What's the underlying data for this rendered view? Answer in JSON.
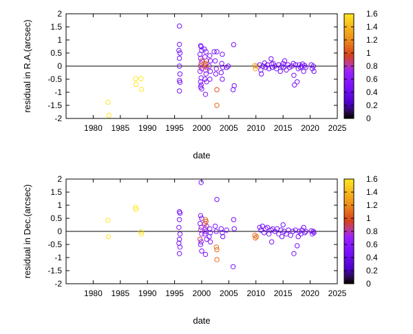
{
  "chart_data": [
    {
      "type": "scatter",
      "title": "",
      "xlabel": "date",
      "ylabel": "residual in R.A.(arcsec)",
      "xlim": [
        1975,
        2025
      ],
      "ylim": [
        -2,
        2
      ],
      "xticks": [
        1980,
        1985,
        1990,
        1995,
        2000,
        2005,
        2010,
        2015,
        2020,
        2025
      ],
      "yticks": [
        -2,
        -1.5,
        -1,
        -0.5,
        0,
        0.5,
        1,
        1.5,
        2
      ],
      "marker": "open-circle",
      "zero_line": true,
      "colorbar": {
        "min": 0,
        "max": 1.6,
        "ticks": [
          0,
          0.2,
          0.4,
          0.6,
          0.8,
          1,
          1.2,
          1.4,
          1.6
        ]
      },
      "points": [
        {
          "x": 1982.7,
          "y": -1.38,
          "c": 1.6
        },
        {
          "x": 1982.9,
          "y": -1.88,
          "c": 1.6
        },
        {
          "x": 1987.8,
          "y": -0.48,
          "c": 1.6
        },
        {
          "x": 1987.9,
          "y": -0.7,
          "c": 1.6
        },
        {
          "x": 1988.8,
          "y": -0.48,
          "c": 1.6
        },
        {
          "x": 1988.9,
          "y": -0.89,
          "c": 1.6
        },
        {
          "x": 1995.9,
          "y": 1.53,
          "c": 0.45
        },
        {
          "x": 1995.9,
          "y": 0.83,
          "c": 0.45
        },
        {
          "x": 1995.8,
          "y": 0.6,
          "c": 0.45
        },
        {
          "x": 1996.0,
          "y": 0.5,
          "c": 0.45
        },
        {
          "x": 1995.9,
          "y": 0.3,
          "c": 0.45
        },
        {
          "x": 1995.9,
          "y": 0.0,
          "c": 0.45
        },
        {
          "x": 1996.0,
          "y": -0.3,
          "c": 0.45
        },
        {
          "x": 1995.9,
          "y": -0.55,
          "c": 0.45
        },
        {
          "x": 1996.0,
          "y": -0.62,
          "c": 0.45
        },
        {
          "x": 1995.9,
          "y": -0.95,
          "c": 0.45
        },
        {
          "x": 1999.8,
          "y": 0.78,
          "c": 0.45
        },
        {
          "x": 1999.9,
          "y": 0.74,
          "c": 0.5
        },
        {
          "x": 2000.0,
          "y": 0.6,
          "c": 0.45
        },
        {
          "x": 1999.7,
          "y": 0.45,
          "c": 0.5
        },
        {
          "x": 1999.8,
          "y": 0.3,
          "c": 0.6
        },
        {
          "x": 2000.0,
          "y": 0.2,
          "c": 0.9
        },
        {
          "x": 1999.9,
          "y": 0.1,
          "c": 0.8
        },
        {
          "x": 1999.8,
          "y": 0.0,
          "c": 0.9
        },
        {
          "x": 2000.0,
          "y": -0.1,
          "c": 0.7
        },
        {
          "x": 1999.7,
          "y": -0.2,
          "c": 0.6
        },
        {
          "x": 1999.9,
          "y": -0.45,
          "c": 0.5
        },
        {
          "x": 1999.8,
          "y": -0.6,
          "c": 0.5
        },
        {
          "x": 1999.9,
          "y": -0.72,
          "c": 0.5
        },
        {
          "x": 1999.8,
          "y": -0.8,
          "c": 0.5
        },
        {
          "x": 2000.0,
          "y": -0.87,
          "c": 0.45
        },
        {
          "x": 2000.5,
          "y": 0.65,
          "c": 0.45
        },
        {
          "x": 2000.8,
          "y": 0.55,
          "c": 0.55
        },
        {
          "x": 2000.6,
          "y": 0.35,
          "c": 0.6
        },
        {
          "x": 2000.9,
          "y": 0.2,
          "c": 0.85
        },
        {
          "x": 2000.7,
          "y": 0.1,
          "c": 1.0
        },
        {
          "x": 2000.8,
          "y": 0.05,
          "c": 1.1
        },
        {
          "x": 2000.6,
          "y": 0.0,
          "c": 0.9
        },
        {
          "x": 2000.9,
          "y": -0.05,
          "c": 1.0
        },
        {
          "x": 2000.7,
          "y": -0.15,
          "c": 0.75
        },
        {
          "x": 2000.8,
          "y": -0.3,
          "c": 0.6
        },
        {
          "x": 2000.6,
          "y": -0.5,
          "c": 0.5
        },
        {
          "x": 2000.9,
          "y": -0.6,
          "c": 0.5
        },
        {
          "x": 2000.7,
          "y": -1.08,
          "c": 0.45
        },
        {
          "x": 2001.5,
          "y": 0.4,
          "c": 0.5
        },
        {
          "x": 2001.6,
          "y": 0.2,
          "c": 0.55
        },
        {
          "x": 2001.4,
          "y": 0.0,
          "c": 0.6
        },
        {
          "x": 2001.6,
          "y": -0.2,
          "c": 0.5
        },
        {
          "x": 2001.5,
          "y": -0.5,
          "c": 0.5
        },
        {
          "x": 2002.3,
          "y": 0.55,
          "c": 0.45
        },
        {
          "x": 2002.8,
          "y": 0.55,
          "c": 0.45
        },
        {
          "x": 2002.5,
          "y": 0.2,
          "c": 0.5
        },
        {
          "x": 2002.7,
          "y": -0.1,
          "c": 0.5
        },
        {
          "x": 2002.6,
          "y": -0.3,
          "c": 0.5
        },
        {
          "x": 2002.8,
          "y": -0.9,
          "c": 1.0
        },
        {
          "x": 2002.8,
          "y": -1.5,
          "c": 1.1
        },
        {
          "x": 2003.8,
          "y": 0.45,
          "c": 0.45
        },
        {
          "x": 2003.7,
          "y": 0.1,
          "c": 0.45
        },
        {
          "x": 2003.9,
          "y": -0.05,
          "c": 0.45
        },
        {
          "x": 2003.6,
          "y": -0.25,
          "c": 0.45
        },
        {
          "x": 2003.8,
          "y": -0.5,
          "c": 0.45
        },
        {
          "x": 2004.6,
          "y": -0.05,
          "c": 0.45
        },
        {
          "x": 2004.9,
          "y": 0.0,
          "c": 0.45
        },
        {
          "x": 2005.9,
          "y": 0.82,
          "c": 0.45
        },
        {
          "x": 2005.8,
          "y": -0.9,
          "c": 0.45
        },
        {
          "x": 2006.0,
          "y": -0.75,
          "c": 0.45
        },
        {
          "x": 2009.8,
          "y": 0.02,
          "c": 1.3
        },
        {
          "x": 2009.9,
          "y": -0.1,
          "c": 1.3
        },
        {
          "x": 2010.1,
          "y": 0.0,
          "c": 1.3
        },
        {
          "x": 2010.7,
          "y": 0.05,
          "c": 0.45
        },
        {
          "x": 2010.9,
          "y": -0.15,
          "c": 0.45
        },
        {
          "x": 2011.0,
          "y": -0.3,
          "c": 0.45
        },
        {
          "x": 2011.3,
          "y": 0.0,
          "c": 0.45
        },
        {
          "x": 2011.6,
          "y": 0.12,
          "c": 0.45
        },
        {
          "x": 2011.8,
          "y": -0.05,
          "c": 0.45
        },
        {
          "x": 2012.1,
          "y": 0.05,
          "c": 0.45
        },
        {
          "x": 2012.4,
          "y": -0.1,
          "c": 0.45
        },
        {
          "x": 2012.8,
          "y": 0.28,
          "c": 0.45
        },
        {
          "x": 2012.9,
          "y": 0.08,
          "c": 0.45
        },
        {
          "x": 2013.0,
          "y": -0.05,
          "c": 0.45
        },
        {
          "x": 2013.2,
          "y": 0.1,
          "c": 0.45
        },
        {
          "x": 2013.5,
          "y": 0.0,
          "c": 0.45
        },
        {
          "x": 2013.8,
          "y": -0.1,
          "c": 0.45
        },
        {
          "x": 2014.2,
          "y": 0.05,
          "c": 0.45
        },
        {
          "x": 2014.5,
          "y": -0.2,
          "c": 0.45
        },
        {
          "x": 2014.8,
          "y": 0.0,
          "c": 0.45
        },
        {
          "x": 2015.0,
          "y": 0.1,
          "c": 0.45
        },
        {
          "x": 2015.1,
          "y": -0.05,
          "c": 0.45
        },
        {
          "x": 2015.3,
          "y": 0.2,
          "c": 0.45
        },
        {
          "x": 2015.6,
          "y": -0.15,
          "c": 0.45
        },
        {
          "x": 2015.9,
          "y": 0.05,
          "c": 0.45
        },
        {
          "x": 2016.2,
          "y": -0.05,
          "c": 0.45
        },
        {
          "x": 2016.6,
          "y": 0.0,
          "c": 0.45
        },
        {
          "x": 2016.9,
          "y": 0.1,
          "c": 0.45
        },
        {
          "x": 2017.0,
          "y": -0.35,
          "c": 0.45
        },
        {
          "x": 2017.1,
          "y": -0.72,
          "c": 0.45
        },
        {
          "x": 2017.3,
          "y": 0.05,
          "c": 0.45
        },
        {
          "x": 2017.6,
          "y": -0.6,
          "c": 0.45
        },
        {
          "x": 2017.8,
          "y": -0.1,
          "c": 0.45
        },
        {
          "x": 2018.0,
          "y": 0.05,
          "c": 0.45
        },
        {
          "x": 2018.2,
          "y": -0.05,
          "c": 0.45
        },
        {
          "x": 2018.4,
          "y": 0.0,
          "c": 0.45
        },
        {
          "x": 2018.6,
          "y": 0.08,
          "c": 0.45
        },
        {
          "x": 2018.8,
          "y": -0.2,
          "c": 0.45
        },
        {
          "x": 2019.0,
          "y": 0.02,
          "c": 0.45
        },
        {
          "x": 2019.2,
          "y": -0.05,
          "c": 0.45
        },
        {
          "x": 2020.2,
          "y": 0.05,
          "c": 0.45
        },
        {
          "x": 2020.4,
          "y": -0.1,
          "c": 0.45
        },
        {
          "x": 2020.6,
          "y": 0.0,
          "c": 0.45
        },
        {
          "x": 2020.7,
          "y": -0.2,
          "c": 0.45
        }
      ]
    },
    {
      "type": "scatter",
      "title": "",
      "xlabel": "date",
      "ylabel": "residual in Dec.(arcsec)",
      "xlim": [
        1975,
        2025
      ],
      "ylim": [
        -2,
        2
      ],
      "xticks": [
        1980,
        1985,
        1990,
        1995,
        2000,
        2005,
        2010,
        2015,
        2020,
        2025
      ],
      "yticks": [
        -2,
        -1.5,
        -1,
        -0.5,
        0,
        0.5,
        1,
        1.5,
        2
      ],
      "marker": "open-circle",
      "zero_line": true,
      "colorbar": {
        "min": 0,
        "max": 1.6,
        "ticks": [
          0,
          0.2,
          0.4,
          0.6,
          0.8,
          1,
          1.2,
          1.4,
          1.6
        ]
      },
      "points": [
        {
          "x": 1982.7,
          "y": 0.42,
          "c": 1.6
        },
        {
          "x": 1982.8,
          "y": -0.2,
          "c": 1.6
        },
        {
          "x": 1987.8,
          "y": 0.92,
          "c": 1.6
        },
        {
          "x": 1987.9,
          "y": 0.85,
          "c": 1.6
        },
        {
          "x": 1988.8,
          "y": -0.02,
          "c": 1.6
        },
        {
          "x": 1988.9,
          "y": -0.1,
          "c": 1.6
        },
        {
          "x": 1995.9,
          "y": 0.75,
          "c": 0.45
        },
        {
          "x": 1996.0,
          "y": 0.7,
          "c": 0.45
        },
        {
          "x": 1995.9,
          "y": 0.45,
          "c": 0.45
        },
        {
          "x": 1995.8,
          "y": 0.15,
          "c": 0.45
        },
        {
          "x": 1996.0,
          "y": -0.1,
          "c": 0.45
        },
        {
          "x": 1995.9,
          "y": -0.3,
          "c": 0.45
        },
        {
          "x": 1995.8,
          "y": -0.45,
          "c": 0.45
        },
        {
          "x": 1996.0,
          "y": -0.6,
          "c": 0.45
        },
        {
          "x": 1995.9,
          "y": -0.85,
          "c": 0.45
        },
        {
          "x": 1999.9,
          "y": 1.87,
          "c": 0.45
        },
        {
          "x": 1999.8,
          "y": 0.6,
          "c": 0.5
        },
        {
          "x": 2000.0,
          "y": 0.5,
          "c": 0.5
        },
        {
          "x": 1999.7,
          "y": 0.3,
          "c": 0.5
        },
        {
          "x": 1999.9,
          "y": 0.15,
          "c": 0.6
        },
        {
          "x": 1999.8,
          "y": 0.05,
          "c": 0.8
        },
        {
          "x": 2000.0,
          "y": -0.1,
          "c": 0.7
        },
        {
          "x": 1999.7,
          "y": -0.3,
          "c": 0.9
        },
        {
          "x": 1999.9,
          "y": -0.4,
          "c": 0.5
        },
        {
          "x": 1999.8,
          "y": -0.5,
          "c": 0.5
        },
        {
          "x": 2000.0,
          "y": -0.75,
          "c": 0.45
        },
        {
          "x": 2000.7,
          "y": 0.45,
          "c": 1.1
        },
        {
          "x": 2000.8,
          "y": 0.38,
          "c": 1.0
        },
        {
          "x": 2000.6,
          "y": 0.3,
          "c": 0.9
        },
        {
          "x": 2000.9,
          "y": 0.2,
          "c": 0.8
        },
        {
          "x": 2000.7,
          "y": 0.1,
          "c": 0.7
        },
        {
          "x": 2000.8,
          "y": 0.0,
          "c": 0.6
        },
        {
          "x": 2000.6,
          "y": -0.1,
          "c": 0.5
        },
        {
          "x": 2000.9,
          "y": -0.3,
          "c": 0.5
        },
        {
          "x": 2000.7,
          "y": -0.88,
          "c": 0.45
        },
        {
          "x": 2001.5,
          "y": 0.1,
          "c": 0.5
        },
        {
          "x": 2001.6,
          "y": -0.05,
          "c": 0.55
        },
        {
          "x": 2001.4,
          "y": -0.2,
          "c": 0.5
        },
        {
          "x": 2001.6,
          "y": -0.4,
          "c": 0.5
        },
        {
          "x": 2002.5,
          "y": 0.2,
          "c": 0.5
        },
        {
          "x": 2002.7,
          "y": 0.0,
          "c": 0.5
        },
        {
          "x": 2002.8,
          "y": 1.22,
          "c": 0.45
        },
        {
          "x": 2002.7,
          "y": -0.6,
          "c": 1.1
        },
        {
          "x": 2002.8,
          "y": -0.7,
          "c": 1.1
        },
        {
          "x": 2002.8,
          "y": -1.08,
          "c": 1.1
        },
        {
          "x": 2003.6,
          "y": 0.1,
          "c": 0.45
        },
        {
          "x": 2003.8,
          "y": -0.05,
          "c": 0.45
        },
        {
          "x": 2003.9,
          "y": -0.2,
          "c": 0.45
        },
        {
          "x": 2004.6,
          "y": 0.05,
          "c": 0.45
        },
        {
          "x": 2005.9,
          "y": 0.45,
          "c": 0.45
        },
        {
          "x": 2006.0,
          "y": 0.1,
          "c": 0.45
        },
        {
          "x": 2005.8,
          "y": -1.35,
          "c": 0.45
        },
        {
          "x": 2009.8,
          "y": -0.15,
          "c": 1.1
        },
        {
          "x": 2009.9,
          "y": -0.25,
          "c": 1.1
        },
        {
          "x": 2010.1,
          "y": -0.2,
          "c": 1.1
        },
        {
          "x": 2010.7,
          "y": 0.15,
          "c": 0.45
        },
        {
          "x": 2010.9,
          "y": 0.05,
          "c": 0.45
        },
        {
          "x": 2011.2,
          "y": 0.2,
          "c": 0.45
        },
        {
          "x": 2011.5,
          "y": -0.05,
          "c": 0.45
        },
        {
          "x": 2011.8,
          "y": 0.1,
          "c": 0.45
        },
        {
          "x": 2012.1,
          "y": 0.15,
          "c": 0.45
        },
        {
          "x": 2012.4,
          "y": -0.1,
          "c": 0.45
        },
        {
          "x": 2012.8,
          "y": 0.05,
          "c": 0.45
        },
        {
          "x": 2012.9,
          "y": -0.4,
          "c": 0.45
        },
        {
          "x": 2013.1,
          "y": 0.1,
          "c": 0.45
        },
        {
          "x": 2013.5,
          "y": 0.0,
          "c": 0.45
        },
        {
          "x": 2013.9,
          "y": 0.1,
          "c": 0.45
        },
        {
          "x": 2014.2,
          "y": -0.1,
          "c": 0.45
        },
        {
          "x": 2014.6,
          "y": 0.05,
          "c": 0.45
        },
        {
          "x": 2014.8,
          "y": -0.2,
          "c": 0.45
        },
        {
          "x": 2015.0,
          "y": 0.25,
          "c": 0.45
        },
        {
          "x": 2015.2,
          "y": 0.0,
          "c": 0.45
        },
        {
          "x": 2015.6,
          "y": -0.1,
          "c": 0.45
        },
        {
          "x": 2016.0,
          "y": 0.05,
          "c": 0.45
        },
        {
          "x": 2016.4,
          "y": -0.15,
          "c": 0.45
        },
        {
          "x": 2016.8,
          "y": 0.0,
          "c": 0.45
        },
        {
          "x": 2017.0,
          "y": -0.85,
          "c": 0.45
        },
        {
          "x": 2017.3,
          "y": 0.05,
          "c": 0.45
        },
        {
          "x": 2017.6,
          "y": -0.55,
          "c": 0.45
        },
        {
          "x": 2017.8,
          "y": -0.2,
          "c": 0.45
        },
        {
          "x": 2018.0,
          "y": 0.0,
          "c": 0.45
        },
        {
          "x": 2018.3,
          "y": -0.1,
          "c": 0.45
        },
        {
          "x": 2018.5,
          "y": 0.05,
          "c": 0.45
        },
        {
          "x": 2018.8,
          "y": 0.15,
          "c": 0.45
        },
        {
          "x": 2019.0,
          "y": -0.05,
          "c": 0.45
        },
        {
          "x": 2019.2,
          "y": 0.0,
          "c": 0.45
        },
        {
          "x": 2020.2,
          "y": 0.02,
          "c": 0.45
        },
        {
          "x": 2020.4,
          "y": -0.1,
          "c": 0.45
        },
        {
          "x": 2020.6,
          "y": 0.0,
          "c": 0.45
        },
        {
          "x": 2020.7,
          "y": -0.05,
          "c": 0.45
        }
      ]
    }
  ],
  "colors": {
    "axis": "#000000",
    "zero_line": "#000000",
    "palette_stops": [
      "#000000",
      "#2a0a4a",
      "#4b00c8",
      "#7a10ff",
      "#9a22ff",
      "#c03a90",
      "#d8401c",
      "#ef8a18",
      "#ffe620"
    ]
  }
}
